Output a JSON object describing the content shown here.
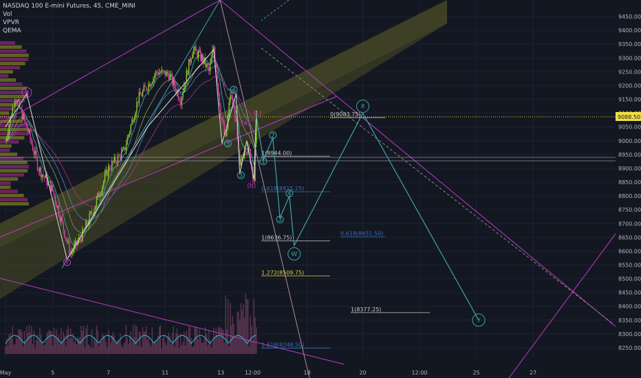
{
  "legend": {
    "symbol": "NASDAQ 100 E-mini Futures, 45, CME_MINI",
    "ind1": "Vol",
    "ind2": "VPVR",
    "ind3": "QEMA"
  },
  "price_tag": "9088.50",
  "colors": {
    "background": "#131722",
    "grid": "#1e2230",
    "candle_up": "#8bd32a",
    "candle_down": "#e040a8",
    "channel": "#c23ac4",
    "wave_line": "#3fa7a0",
    "wave_white": "#e0e0e0",
    "price_line": "#f0e040",
    "fib_blue": "#3f6fb5",
    "fib_white": "#cccccc",
    "fib_yellow": "#e0d040",
    "volume": "#6b3a5a"
  },
  "chart_data": {
    "type": "line",
    "symbol": "NASDAQ 100 E-mini Futures",
    "interval": "45",
    "ylim": [
      8215,
      9510
    ],
    "y_ticks": [
      9450,
      9400,
      9350,
      9300,
      9250,
      9200,
      9150,
      9100,
      9050,
      9000,
      8950,
      8900,
      8850,
      8800,
      8750,
      8700,
      8650,
      8600,
      8550,
      8500,
      8450,
      8400,
      8350,
      8300,
      8250
    ],
    "y_tick_labels": [
      "9450.00",
      "9400.00",
      "9350.00",
      "9300.00",
      "9250.00",
      "9200.00",
      "9150.00",
      "9100.00",
      "9050.00",
      "9000.00",
      "8950.00",
      "8900.00",
      "8850.00",
      "8800.00",
      "8750.00",
      "8700.00",
      "8650.00",
      "8600.00",
      "8550.00",
      "8500.00",
      "8450.00",
      "8400.00",
      "8350.00",
      "8300.00",
      "8250.00"
    ],
    "x_tick_labels": [
      "May",
      "5",
      "7",
      "11",
      "13",
      "12:00",
      "18",
      "20",
      "12:00",
      "25",
      "27"
    ],
    "x_tick_index": [
      0,
      40,
      87,
      135,
      182,
      209,
      255,
      302,
      350,
      398,
      446
    ],
    "last_price": 9088.5,
    "price_path": {
      "index": [
        0,
        8,
        18,
        28,
        40,
        55,
        65,
        75,
        87,
        100,
        112,
        120,
        128,
        138,
        148,
        158,
        166,
        172,
        176,
        182,
        186,
        190,
        194,
        198,
        202,
        206,
        210,
        212
      ],
      "close": [
        9000,
        9160,
        9050,
        8900,
        8820,
        8590,
        8660,
        8760,
        8900,
        8960,
        9150,
        9200,
        9250,
        9240,
        9150,
        9330,
        9300,
        9250,
        9340,
        9100,
        9000,
        9170,
        9100,
        8900,
        8980,
        8960,
        8860,
        9090
      ]
    },
    "projection": {
      "points_index": [
        212,
        218,
        226,
        232,
        240,
        244,
        302,
        400
      ],
      "points_price": [
        9090,
        8930,
        9010,
        8720,
        8800,
        8620,
        9100,
        8350
      ],
      "labels": [
        "(c)",
        "1",
        "2",
        "3",
        "4",
        "W",
        "X",
        "Y"
      ]
    },
    "fib_levels": [
      {
        "label": "0(9083.75)",
        "price": 9083.75
      },
      {
        "label": "1(8944.00)",
        "price": 8944.0
      },
      {
        "label": "0.618(8815.25)",
        "price": 8815.25
      },
      {
        "label": "0.618(8651.50)",
        "price": 8651.5
      },
      {
        "label": "1(8636.75)",
        "price": 8636.75
      },
      {
        "label": "1.272(8509.75)",
        "price": 8509.75
      },
      {
        "label": "1(8377.25)",
        "price": 8377.25
      },
      {
        "label": "1.618(8248.50)",
        "price": 8248.5
      }
    ],
    "wave_labels": [
      "X",
      "Y",
      "3",
      "4",
      "5",
      "(a)",
      "(b)",
      "(c)",
      "1",
      "2",
      "3",
      "4",
      "W",
      "X",
      "Y"
    ]
  }
}
